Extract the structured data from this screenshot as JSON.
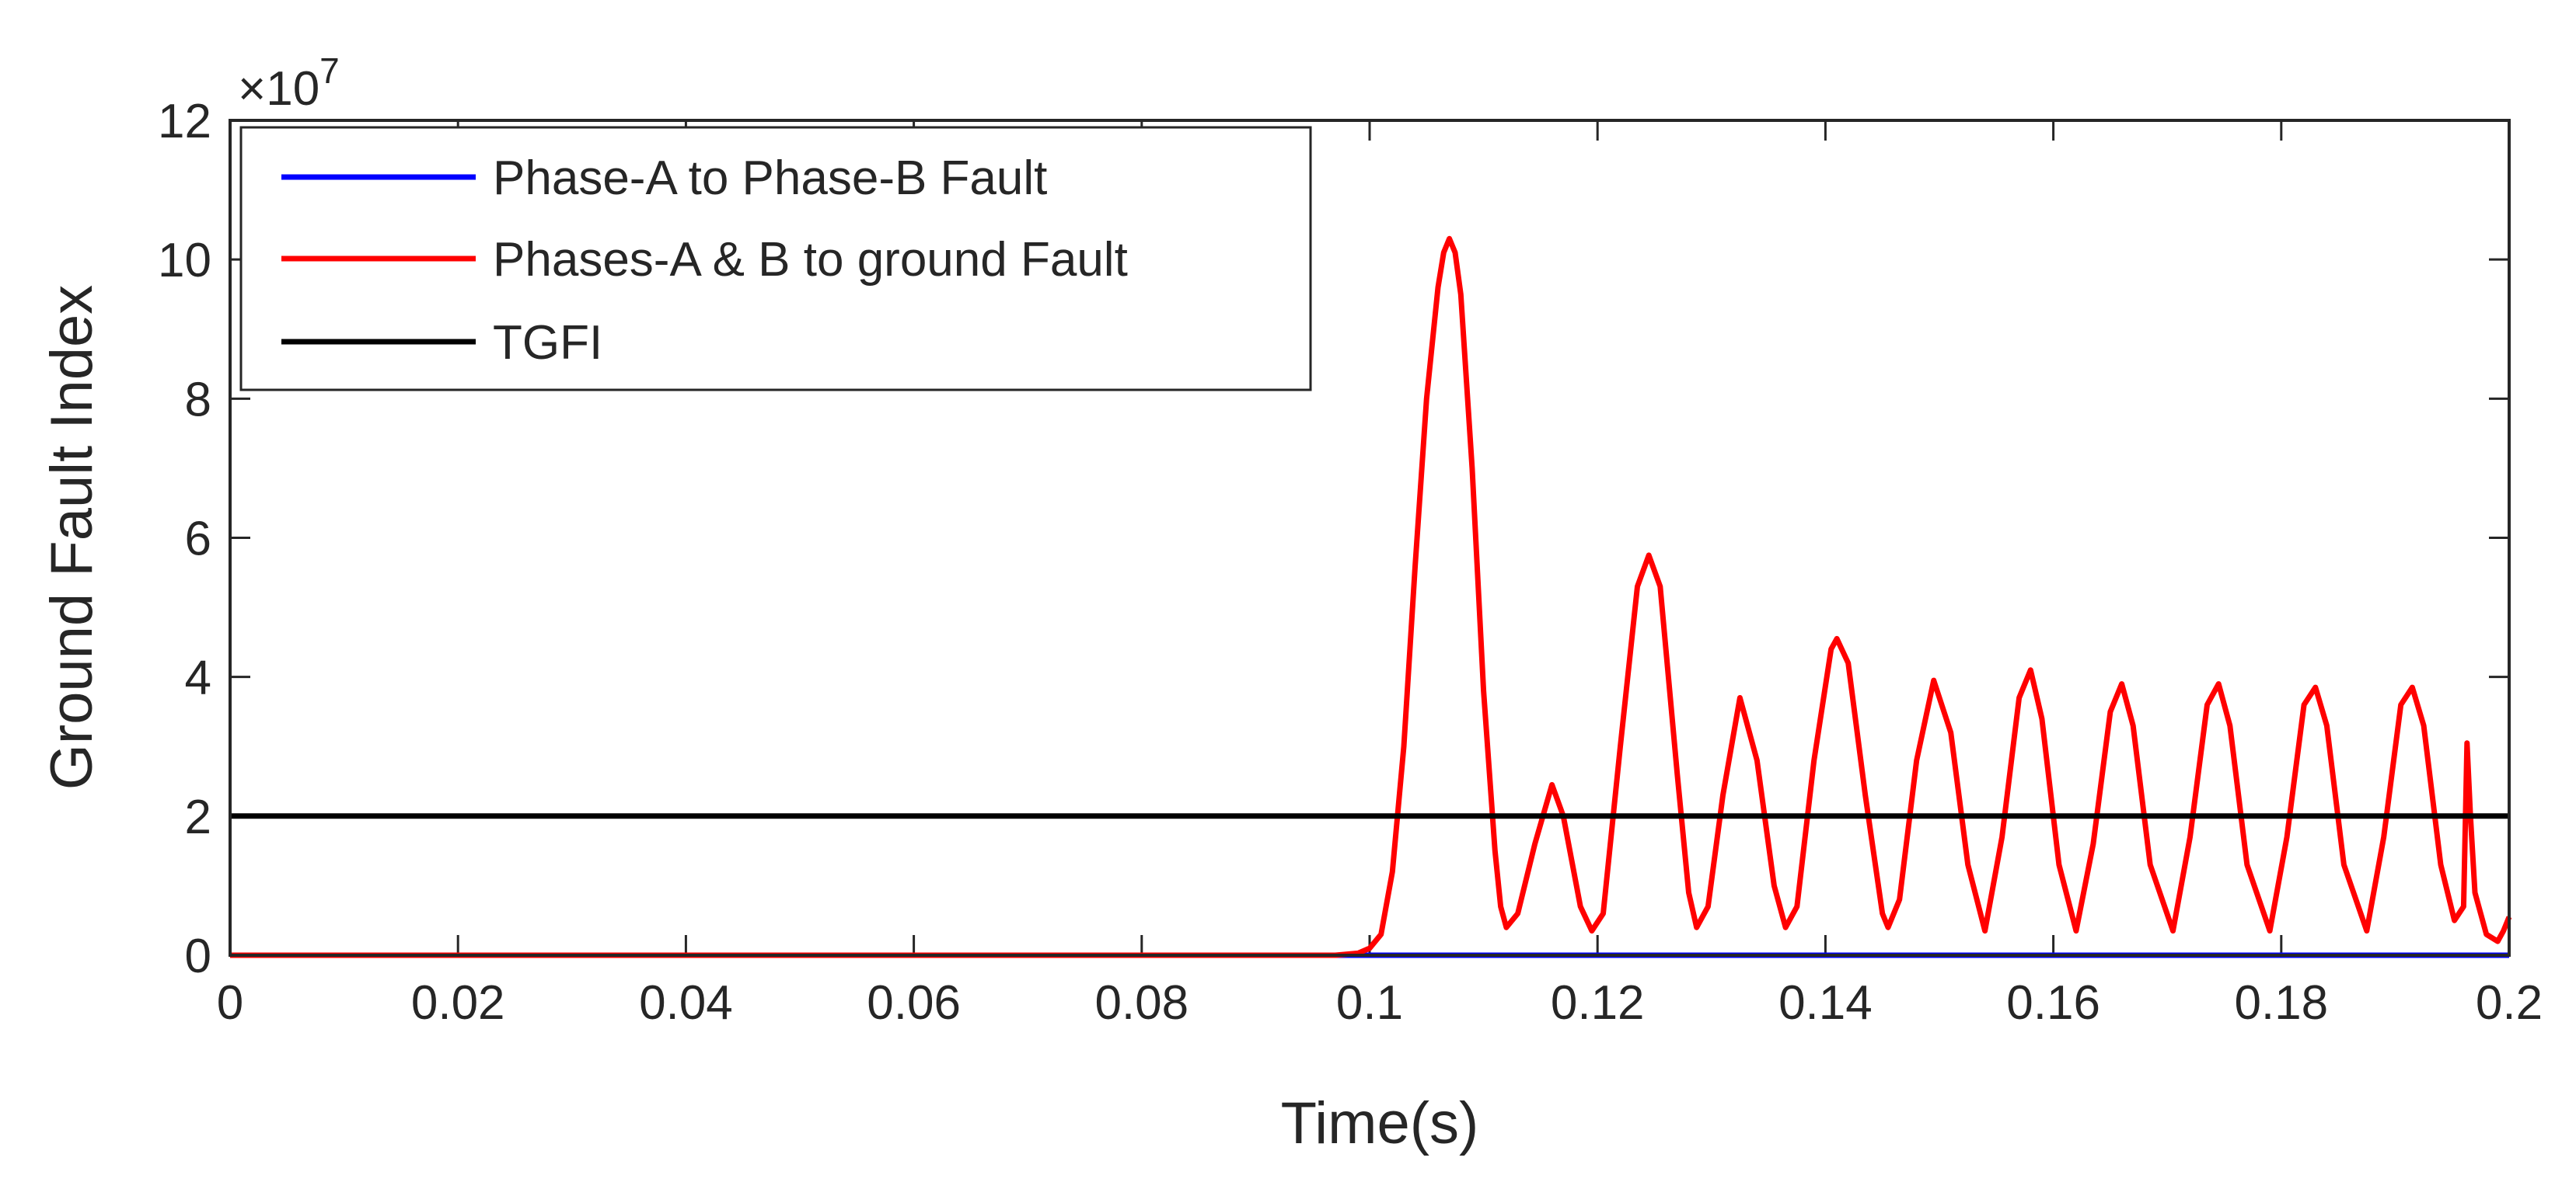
{
  "chart_data": {
    "type": "line",
    "title": "",
    "xlabel": "Time(s)",
    "ylabel": "Ground Fault Index",
    "xlim": [
      0,
      0.2
    ],
    "ylim": [
      0,
      12
    ],
    "x_ticks": [
      0,
      0.02,
      0.04,
      0.06,
      0.08,
      0.1,
      0.12,
      0.14,
      0.16,
      0.18,
      0.2
    ],
    "x_tick_labels": [
      "0",
      "0.02",
      "0.04",
      "0.06",
      "0.08",
      "0.1",
      "0.12",
      "0.14",
      "0.16",
      "0.18",
      "0.2"
    ],
    "y_ticks": [
      0,
      2,
      4,
      6,
      8,
      10,
      12
    ],
    "y_tick_labels": [
      "0",
      "2",
      "4",
      "6",
      "8",
      "10",
      "12"
    ],
    "y_exponent_label": "×10",
    "y_exponent_power": "7",
    "legend_position": "top-left",
    "series": [
      {
        "name": "Phase-A to Phase-B Fault",
        "color": "#0000ff",
        "points": [
          [
            0,
            0
          ],
          [
            0.2,
            0
          ]
        ]
      },
      {
        "name": "Phases-A & B to ground Fault",
        "color": "#ff0000",
        "points": [
          [
            0,
            0
          ],
          [
            0.097,
            0
          ],
          [
            0.099,
            0.03
          ],
          [
            0.1,
            0.1
          ],
          [
            0.101,
            0.3
          ],
          [
            0.102,
            1.2
          ],
          [
            0.103,
            3.0
          ],
          [
            0.104,
            5.6
          ],
          [
            0.105,
            8.0
          ],
          [
            0.106,
            9.6
          ],
          [
            0.1065,
            10.1
          ],
          [
            0.107,
            10.3
          ],
          [
            0.1075,
            10.1
          ],
          [
            0.108,
            9.5
          ],
          [
            0.109,
            7.0
          ],
          [
            0.11,
            3.8
          ],
          [
            0.111,
            1.5
          ],
          [
            0.1115,
            0.7
          ],
          [
            0.112,
            0.4
          ],
          [
            0.113,
            0.6
          ],
          [
            0.1145,
            1.6
          ],
          [
            0.116,
            2.45
          ],
          [
            0.117,
            2.0
          ],
          [
            0.1185,
            0.7
          ],
          [
            0.1195,
            0.35
          ],
          [
            0.1205,
            0.6
          ],
          [
            0.122,
            3.0
          ],
          [
            0.1235,
            5.3
          ],
          [
            0.1245,
            5.75
          ],
          [
            0.1255,
            5.3
          ],
          [
            0.127,
            2.6
          ],
          [
            0.128,
            0.9
          ],
          [
            0.1287,
            0.4
          ],
          [
            0.1297,
            0.7
          ],
          [
            0.131,
            2.3
          ],
          [
            0.1325,
            3.7
          ],
          [
            0.134,
            2.8
          ],
          [
            0.1355,
            1.0
          ],
          [
            0.1365,
            0.4
          ],
          [
            0.1375,
            0.7
          ],
          [
            0.139,
            2.8
          ],
          [
            0.1405,
            4.4
          ],
          [
            0.141,
            4.55
          ],
          [
            0.142,
            4.2
          ],
          [
            0.1435,
            2.3
          ],
          [
            0.145,
            0.6
          ],
          [
            0.1455,
            0.4
          ],
          [
            0.1465,
            0.8
          ],
          [
            0.148,
            2.8
          ],
          [
            0.1495,
            3.95
          ],
          [
            0.151,
            3.2
          ],
          [
            0.1525,
            1.3
          ],
          [
            0.154,
            0.35
          ],
          [
            0.1555,
            1.7
          ],
          [
            0.157,
            3.7
          ],
          [
            0.158,
            4.1
          ],
          [
            0.159,
            3.4
          ],
          [
            0.1605,
            1.3
          ],
          [
            0.162,
            0.35
          ],
          [
            0.1635,
            1.6
          ],
          [
            0.165,
            3.5
          ],
          [
            0.166,
            3.9
          ],
          [
            0.167,
            3.3
          ],
          [
            0.1685,
            1.3
          ],
          [
            0.1705,
            0.35
          ],
          [
            0.172,
            1.7
          ],
          [
            0.1735,
            3.6
          ],
          [
            0.1745,
            3.9
          ],
          [
            0.1755,
            3.3
          ],
          [
            0.177,
            1.3
          ],
          [
            0.179,
            0.35
          ],
          [
            0.1805,
            1.7
          ],
          [
            0.182,
            3.6
          ],
          [
            0.183,
            3.85
          ],
          [
            0.184,
            3.3
          ],
          [
            0.1855,
            1.3
          ],
          [
            0.1875,
            0.35
          ],
          [
            0.189,
            1.7
          ],
          [
            0.1905,
            3.6
          ],
          [
            0.1915,
            3.85
          ],
          [
            0.1925,
            3.3
          ],
          [
            0.194,
            1.3
          ],
          [
            0.1952,
            0.5
          ],
          [
            0.196,
            0.7
          ],
          [
            0.1963,
            3.05
          ],
          [
            0.1966,
            2.0
          ],
          [
            0.197,
            0.9
          ],
          [
            0.198,
            0.3
          ],
          [
            0.199,
            0.2
          ],
          [
            0.1995,
            0.35
          ],
          [
            0.2,
            0.55
          ]
        ]
      },
      {
        "name": "TGFI",
        "color": "#000000",
        "points": [
          [
            0,
            2
          ],
          [
            0.2,
            2
          ]
        ]
      }
    ]
  }
}
